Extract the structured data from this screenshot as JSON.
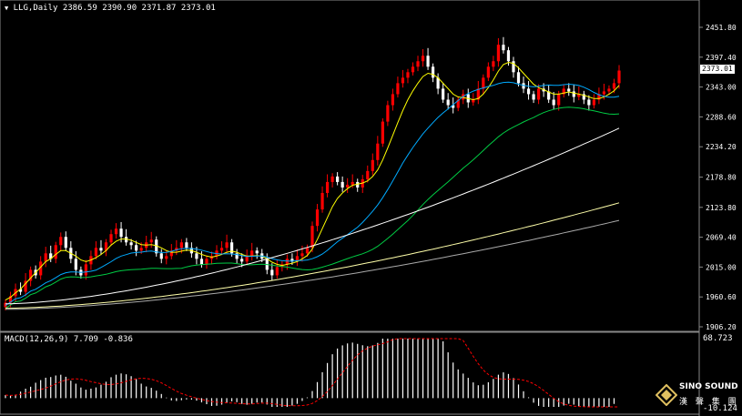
{
  "symbol_header": {
    "label": "LLG,Daily",
    "values": "2386.59 2390.90 2371.87 2373.01"
  },
  "macd_header": {
    "label": "MACD(12,26,9) 7.709 -0.836"
  },
  "current_price": "2373.01",
  "macd_axis": {
    "top": "68.723",
    "bottom": "-10.124"
  },
  "watermark": {
    "line1": "SINO SOUND",
    "line2": "漢 聲 集 團"
  },
  "colors": {
    "bull": "#ff0000",
    "bear": "#ffffff",
    "ma_fast": "#ffff00",
    "ma_mid": "#00aaff",
    "ma_slow": "#00cc44",
    "ma_long": "#ffffff",
    "ma_longer": "#ffffaa",
    "ma_longest": "#aaaaaa",
    "macd_hist": "#ffffff",
    "macd_signal": "#ff0000"
  },
  "chart_data": {
    "type": "candlestick",
    "y_ticks": [
      "2451.80",
      "2397.40",
      "2343.00",
      "2288.60",
      "2234.20",
      "2178.80",
      "2123.80",
      "2069.40",
      "2015.00",
      "1960.60",
      "1906.20"
    ],
    "ylim": [
      1906.2,
      2451.8
    ],
    "closes": [
      1950,
      1962,
      1975,
      1970,
      1990,
      2010,
      2000,
      2025,
      2040,
      2030,
      2055,
      2070,
      2050,
      2030,
      2010,
      2000,
      2020,
      2035,
      2050,
      2045,
      2060,
      2075,
      2085,
      2070,
      2060,
      2055,
      2045,
      2050,
      2060,
      2065,
      2040,
      2030,
      2035,
      2045,
      2050,
      2060,
      2050,
      2040,
      2030,
      2020,
      2030,
      2035,
      2045,
      2050,
      2060,
      2040,
      2030,
      2025,
      2035,
      2045,
      2040,
      2030,
      2010,
      2000,
      2015,
      2020,
      2030,
      2025,
      2035,
      2040,
      2050,
      2090,
      2120,
      2150,
      2170,
      2180,
      2170,
      2160,
      2165,
      2170,
      2160,
      2175,
      2190,
      2210,
      2240,
      2280,
      2310,
      2330,
      2350,
      2360,
      2370,
      2380,
      2390,
      2400,
      2380,
      2360,
      2340,
      2320,
      2310,
      2305,
      2320,
      2330,
      2315,
      2320,
      2340,
      2360,
      2380,
      2390,
      2420,
      2410,
      2390,
      2370,
      2350,
      2340,
      2330,
      2320,
      2340,
      2335,
      2320,
      2310,
      2330,
      2340,
      2335,
      2325,
      2330,
      2320,
      2310,
      2320,
      2330,
      2335,
      2340,
      2350,
      2373
    ],
    "ma_fast": [
      1955,
      1960,
      1968,
      1975,
      1985,
      1995,
      2005,
      2015,
      2025,
      2030,
      2038,
      2045,
      2045,
      2040,
      2035,
      2028,
      2025,
      2028,
      2032,
      2038,
      2045,
      2055,
      2062,
      2066,
      2066,
      2064,
      2060,
      2056,
      2055,
      2056,
      2054,
      2050,
      2045,
      2042,
      2042,
      2044,
      2046,
      2045,
      2042,
      2038,
      2035,
      2033,
      2035,
      2038,
      2042,
      2044,
      2042,
      2038,
      2035,
      2035,
      2036,
      2035,
      2030,
      2024,
      2020,
      2018,
      2020,
      2022,
      2025,
      2030,
      2036,
      2048,
      2065,
      2085,
      2105,
      2125,
      2140,
      2150,
      2158,
      2164,
      2166,
      2168,
      2172,
      2180,
      2192,
      2210,
      2232,
      2255,
      2278,
      2300,
      2320,
      2336,
      2350,
      2362,
      2368,
      2366,
      2360,
      2350,
      2340,
      2330,
      2325,
      2324,
      2322,
      2320,
      2322,
      2330,
      2342,
      2356,
      2372,
      2384,
      2388,
      2386,
      2378,
      2368,
      2358,
      2348,
      2342,
      2338,
      2334,
      2330,
      2330,
      2332,
      2334,
      2332,
      2330,
      2328,
      2325,
      2322,
      2322,
      2325,
      2330,
      2336,
      2346
    ],
    "macd_hist_range": [
      -10.124,
      68.723
    ]
  }
}
